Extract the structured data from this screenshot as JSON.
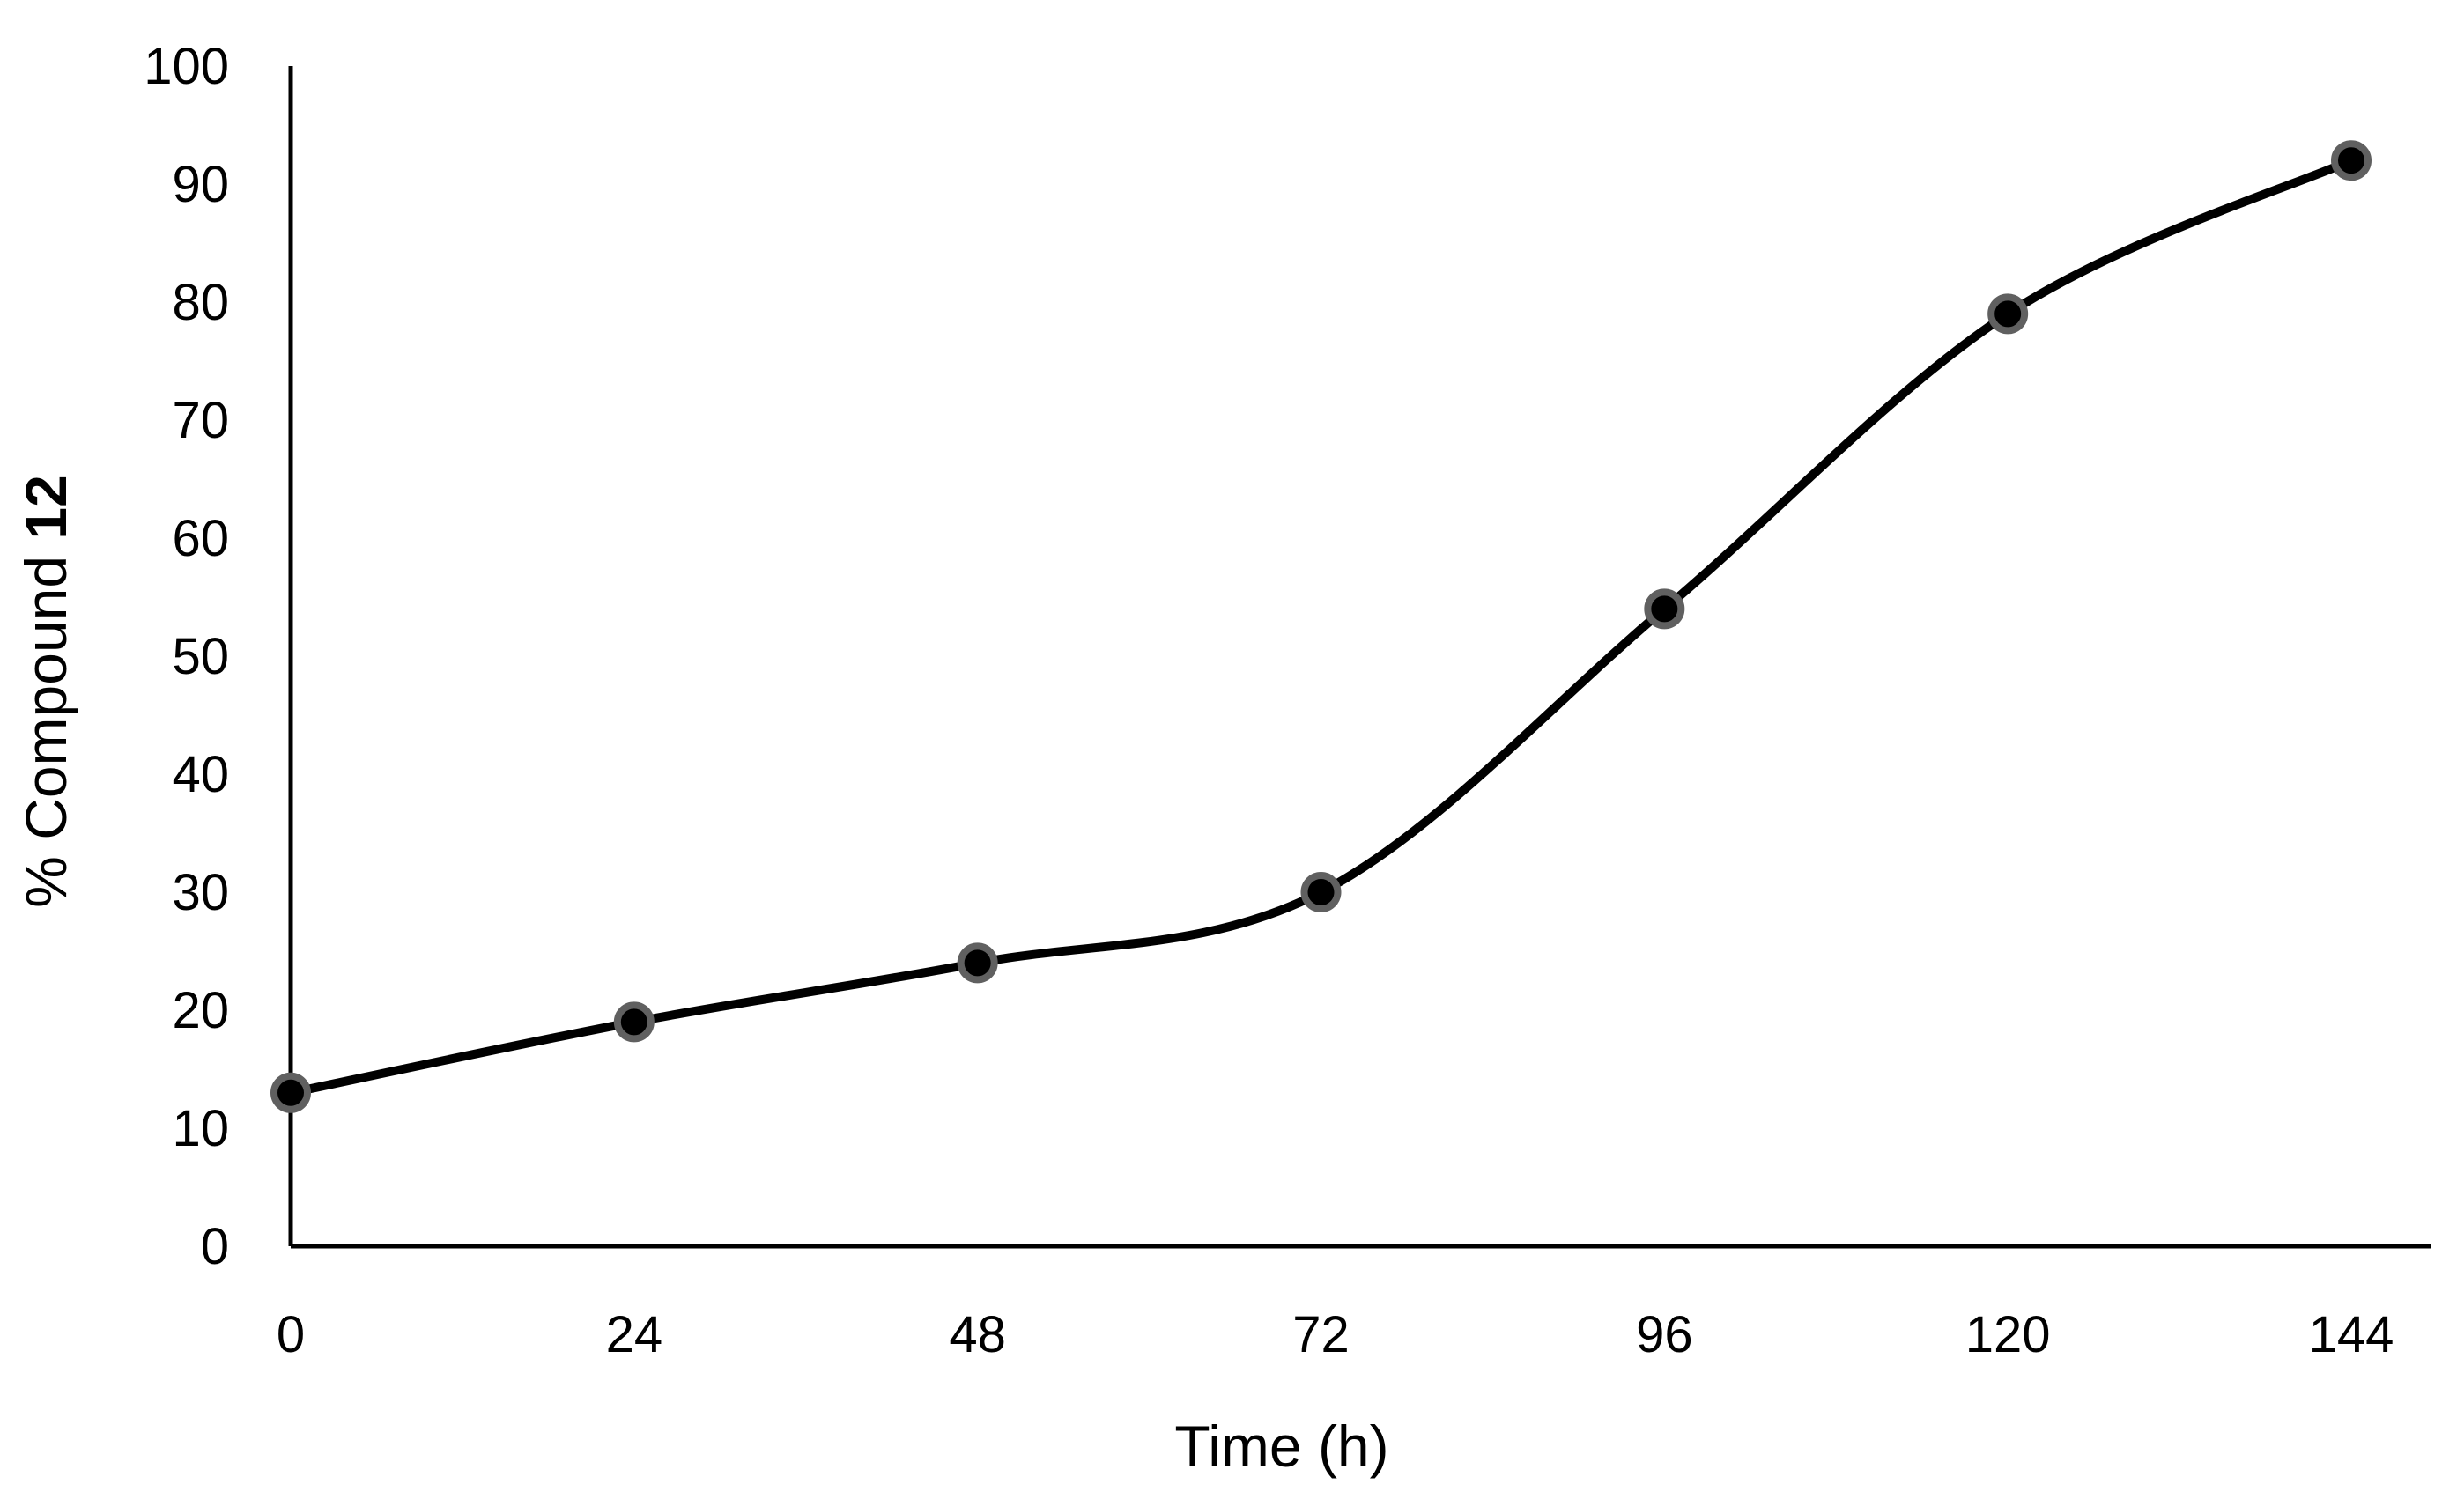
{
  "chart_data": {
    "type": "line",
    "title": "",
    "xlabel": "Time (h)",
    "ylabel": {
      "prefix": "% Compound ",
      "bold": "12"
    },
    "x": [
      0,
      24,
      48,
      72,
      96,
      120,
      144
    ],
    "x_ticks": [
      "0",
      "24",
      "48",
      "72",
      "96",
      "120",
      "144"
    ],
    "y_ticks": [
      "0",
      "10",
      "20",
      "30",
      "40",
      "50",
      "60",
      "70",
      "80",
      "90",
      "100"
    ],
    "xlim": [
      0,
      150
    ],
    "ylim": [
      0,
      100
    ],
    "grid": false,
    "legend": "none",
    "smooth": true,
    "series": [
      {
        "name": "% Compound 12",
        "values": [
          13,
          19,
          24,
          30,
          54,
          79,
          92
        ],
        "line_color": "#000000",
        "marker_fill": "#000000",
        "marker_edge": "#606060"
      }
    ]
  }
}
